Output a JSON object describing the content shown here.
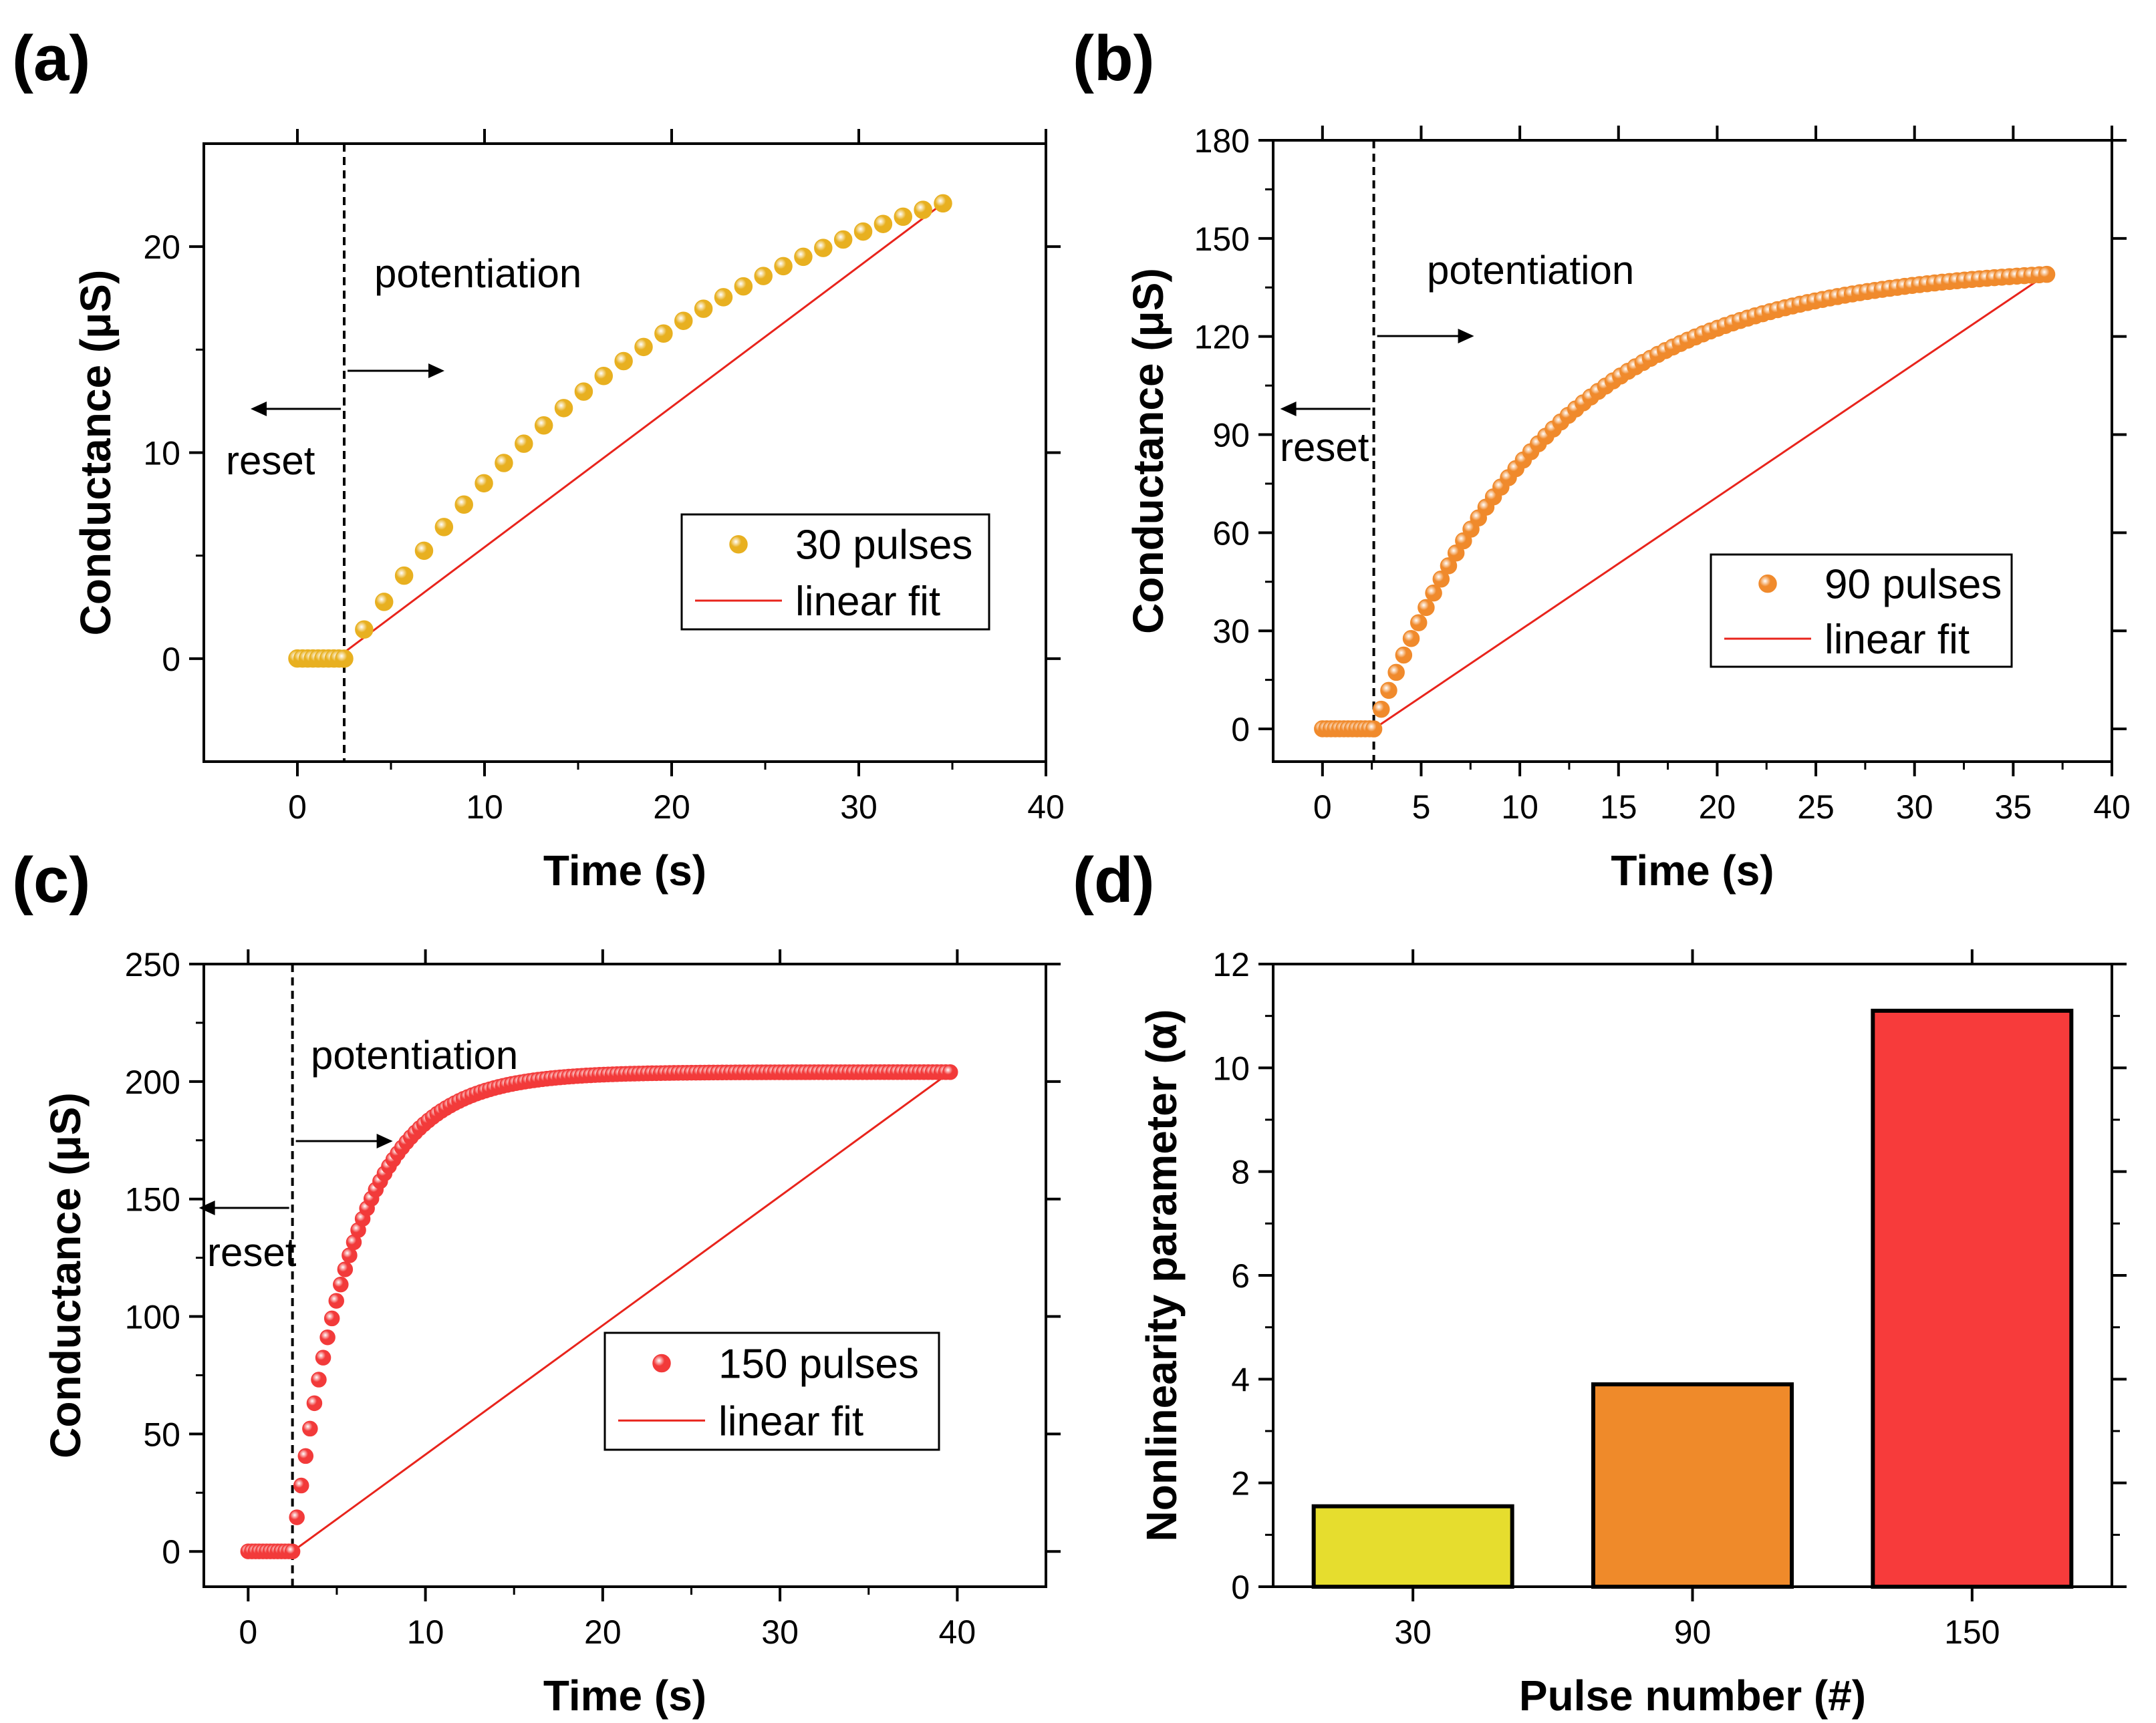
{
  "chart_data": [
    {
      "panel": "(a)",
      "type": "scatter",
      "xlabel": "Time (s)",
      "ylabel": "Conductance (μS)",
      "xlim": [
        -5,
        40
      ],
      "ylim": [
        -5,
        25
      ],
      "xticks": [
        0,
        10,
        20,
        30,
        40
      ],
      "yticks": [
        0,
        10,
        20
      ],
      "reset_time": 2.5,
      "series": [
        {
          "name": "30 pulses",
          "color": "#E8B020",
          "model": {
            "t0": 2.5,
            "t1": 34.5,
            "g_end": 22.1,
            "pulses": 30,
            "reset_points": 9,
            "alpha": 1.55
          },
          "legend_label": "30 pulses"
        },
        {
          "name": "linear fit",
          "color": "#E8241C",
          "x": [
            2.5,
            34.5
          ],
          "y": [
            0.3,
            22.1
          ],
          "legend_label": "linear fit"
        }
      ],
      "annotations": {
        "potentiation": "potentiation",
        "reset": "reset"
      },
      "legend_position": "center-right"
    },
    {
      "panel": "(b)",
      "type": "scatter",
      "xlabel": "Time (s)",
      "ylabel": "Conductance (μS)",
      "xlim": [
        -2.5,
        40
      ],
      "ylim": [
        -10,
        180
      ],
      "xticks": [
        0,
        5,
        10,
        15,
        20,
        25,
        30,
        35,
        40
      ],
      "yticks": [
        0,
        30,
        60,
        90,
        120,
        150,
        180
      ],
      "reset_time": 2.6,
      "series": [
        {
          "name": "90 pulses",
          "color": "#F08A2C",
          "model": {
            "t0": 2.6,
            "t1": 36.7,
            "g_end": 139,
            "pulses": 90,
            "reset_points": 12,
            "alpha": 3.9
          },
          "legend_label": "90 pulses"
        },
        {
          "name": "linear fit",
          "color": "#E8241C",
          "x": [
            2.6,
            36.7
          ],
          "y": [
            0,
            139
          ],
          "legend_label": "linear fit"
        }
      ],
      "annotations": {
        "potentiation": "potentiation",
        "reset": "reset"
      },
      "legend_position": "center-right"
    },
    {
      "panel": "(c)",
      "type": "scatter",
      "xlabel": "Time (s)",
      "ylabel": "Conductance (μS)",
      "xlim": [
        -2.5,
        45
      ],
      "ylim": [
        -15,
        250
      ],
      "xticks": [
        0,
        10,
        20,
        30,
        40
      ],
      "yticks": [
        0,
        50,
        100,
        150,
        200,
        250
      ],
      "reset_time": 2.5,
      "series": [
        {
          "name": "150 pulses",
          "color": "#F23A3A",
          "model": {
            "t0": 2.5,
            "t1": 39.6,
            "g_end": 204,
            "pulses": 150,
            "reset_points": 12,
            "alpha": 11.1
          },
          "legend_label": "150 pulses"
        },
        {
          "name": "linear fit",
          "color": "#E8241C",
          "x": [
            2.5,
            39.6
          ],
          "y": [
            0,
            204
          ],
          "legend_label": "linear fit"
        }
      ],
      "annotations": {
        "potentiation": "potentiation",
        "reset": "reset"
      },
      "legend_position": "center-right"
    },
    {
      "panel": "(d)",
      "type": "bar",
      "xlabel": "Pulse number (#)",
      "ylabel": "Nonlinearity parameter (α)",
      "categories": [
        "30",
        "90",
        "150"
      ],
      "values": [
        1.55,
        3.9,
        11.1
      ],
      "colors": [
        "#E6DD2E",
        "#EF8A2A",
        "#F73B3B"
      ],
      "ylim": [
        0,
        12
      ],
      "yticks": [
        0,
        2,
        4,
        6,
        8,
        10,
        12
      ]
    }
  ]
}
